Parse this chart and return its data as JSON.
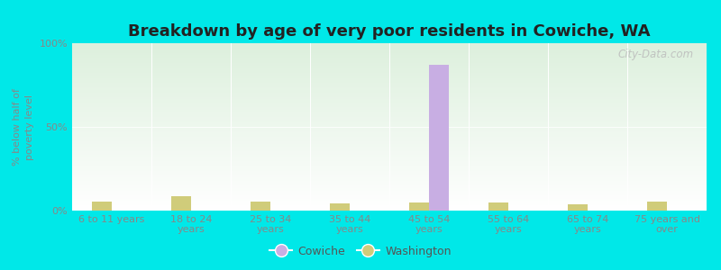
{
  "title": "Breakdown by age of very poor residents in Cowiche, WA",
  "ylabel": "% below half of\npoverty level",
  "categories": [
    "6 to 11 years",
    "18 to 24\nyears",
    "25 to 34\nyears",
    "35 to 44\nyears",
    "45 to 54\nyears",
    "55 to 64\nyears",
    "65 to 74\nyears",
    "75 years and\nover"
  ],
  "cowiche_values": [
    0,
    0,
    0,
    0,
    87,
    0,
    0,
    0
  ],
  "washington_values": [
    5.5,
    8.5,
    5.5,
    4.5,
    5.0,
    5.0,
    3.5,
    5.5
  ],
  "cowiche_color": "#c8aee3",
  "washington_color": "#d0cc7a",
  "ylim": [
    0,
    100
  ],
  "yticks": [
    0,
    50,
    100
  ],
  "ytick_labels": [
    "0%",
    "50%",
    "100%"
  ],
  "bar_width": 0.25,
  "bg_color_top_left": "#ddf0dd",
  "bg_color_bottom_right": "#f0fff0",
  "title_fontsize": 13,
  "axis_fontsize": 8,
  "tick_fontsize": 8,
  "legend_fontsize": 9,
  "watermark_text": "City-Data.com",
  "fig_bg_color": "#00e8e8"
}
